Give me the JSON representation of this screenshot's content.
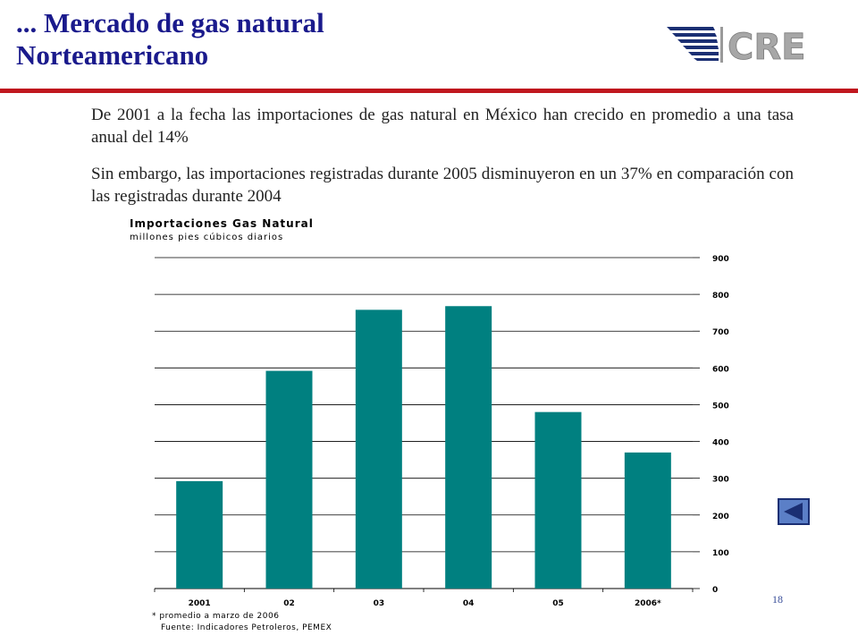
{
  "slide": {
    "title_line1": "... Mercado de gas natural",
    "title_line2": "Norteamericano",
    "logo_text": "CRE",
    "paragraph1": "De 2001 a la fecha las importaciones de gas natural en México han crecido en promedio a una tasa anual del 14%",
    "paragraph2": "Sin embargo, las importaciones registradas durante 2005 disminuyeron en un 37% en comparación con las registradas durante 2004",
    "page_number": "18",
    "footnote1": "* promedio a marzo de 2006",
    "footnote2": "Fuente: Indicadores Petroleros, PEMEX"
  },
  "colors": {
    "title": "#1a1a8c",
    "accent_line": "#c0171e",
    "bar": "#008080",
    "nav_button": "#5b7fc7"
  },
  "chart_data": {
    "type": "bar",
    "title": "Importaciones Gas Natural",
    "subtitle": "millones pies cúbicos diarios",
    "categories": [
      "2001",
      "02",
      "03",
      "04",
      "05",
      "2006*"
    ],
    "values": [
      292,
      592,
      758,
      768,
      480,
      370
    ],
    "ylim": [
      0,
      900
    ],
    "yticks": [
      0,
      100,
      200,
      300,
      400,
      500,
      600,
      700,
      800,
      900
    ],
    "y_axis_side": "right",
    "grid": true
  }
}
